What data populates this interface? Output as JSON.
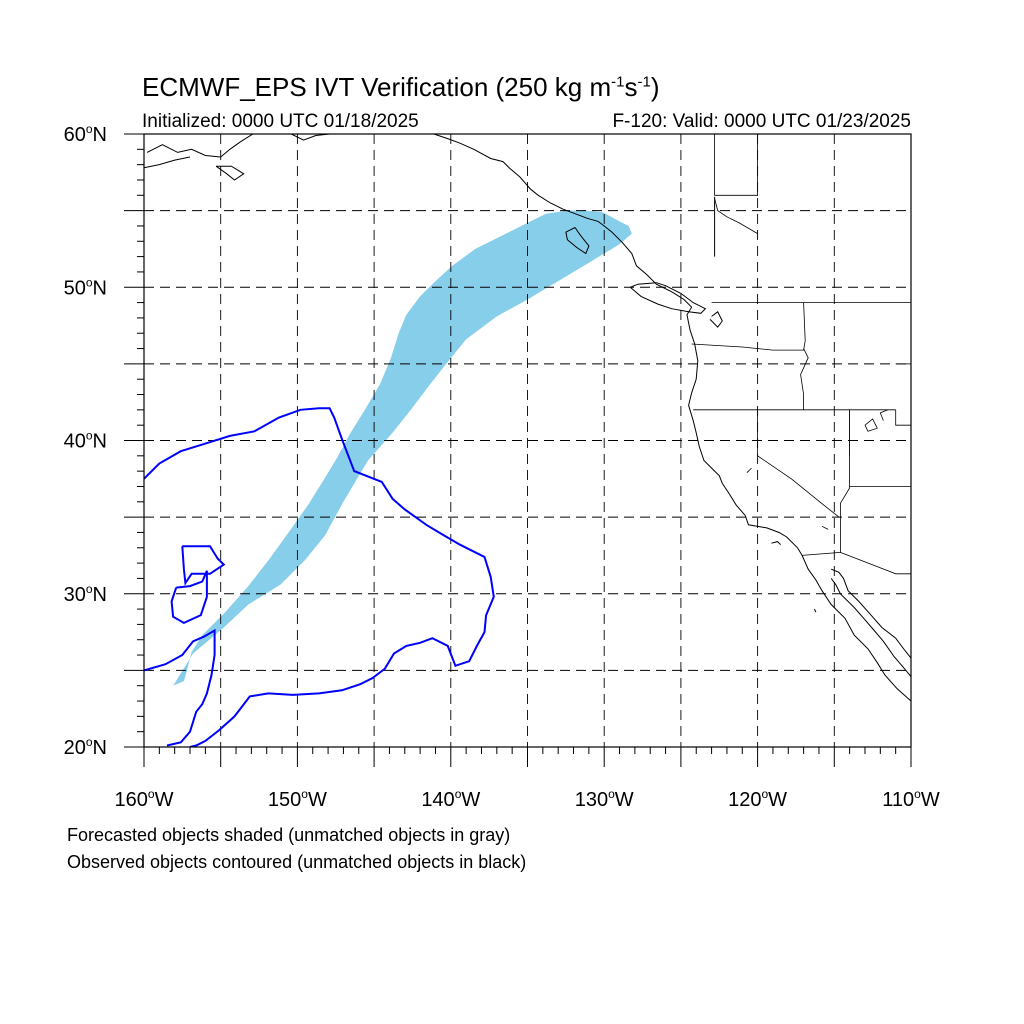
{
  "title": {
    "main": "ECMWF_EPS IVT Verification (250 kg m",
    "exp1": "-1",
    "mid": "s",
    "exp2": "-1",
    "close": ")"
  },
  "subtitle_left": "Initialized: 0000 UTC 01/18/2025",
  "subtitle_right": "F-120: Valid: 0000 UTC 01/23/2025",
  "notes": [
    "Forecasted objects shaded (unmatched objects in gray)",
    "Observed objects contoured (unmatched objects in black)"
  ],
  "map": {
    "lon_range": [
      -160,
      -110
    ],
    "lat_range": [
      20,
      60
    ],
    "lon_labels": [
      {
        "lon": -160,
        "num": "160",
        "hemi": "W"
      },
      {
        "lon": -150,
        "num": "150",
        "hemi": "W"
      },
      {
        "lon": -140,
        "num": "140",
        "hemi": "W"
      },
      {
        "lon": -130,
        "num": "130",
        "hemi": "W"
      },
      {
        "lon": -120,
        "num": "120",
        "hemi": "W"
      },
      {
        "lon": -110,
        "num": "110",
        "hemi": "W"
      }
    ],
    "lat_labels": [
      {
        "lat": 60,
        "num": "60",
        "hemi": "N"
      },
      {
        "lat": 50,
        "num": "50",
        "hemi": "N"
      },
      {
        "lat": 40,
        "num": "40",
        "hemi": "N"
      },
      {
        "lat": 30,
        "num": "30",
        "hemi": "N"
      },
      {
        "lat": 20,
        "num": "20",
        "hemi": "N"
      }
    ],
    "grid_lons": [
      -155,
      -150,
      -145,
      -140,
      -135,
      -130,
      -125,
      -120,
      -115
    ],
    "grid_lats": [
      55,
      50,
      45,
      40,
      35,
      30,
      25
    ],
    "colors": {
      "forecast_fill": "#87CEEB",
      "observed_contour": "#0000FF",
      "coastline": "#000000",
      "grid": "#000000"
    },
    "forecast_object": [
      [
        -158.1,
        24.0
      ],
      [
        -156.8,
        26.1
      ],
      [
        -154.8,
        27.8
      ],
      [
        -153.2,
        29.3
      ],
      [
        -151.1,
        30.6
      ],
      [
        -149.5,
        32.2
      ],
      [
        -148.2,
        33.8
      ],
      [
        -147.0,
        36.0
      ],
      [
        -145.4,
        38.7
      ],
      [
        -143.8,
        40.5
      ],
      [
        -142.6,
        42.0
      ],
      [
        -141.4,
        43.6
      ],
      [
        -140.3,
        45.0
      ],
      [
        -139.0,
        46.6
      ],
      [
        -137.0,
        48.1
      ],
      [
        -135.0,
        49.2
      ],
      [
        -133.0,
        50.4
      ],
      [
        -131.0,
        51.6
      ],
      [
        -129.0,
        52.8
      ],
      [
        -128.2,
        53.5
      ],
      [
        -128.4,
        54.0
      ],
      [
        -129.2,
        54.4
      ],
      [
        -130.1,
        54.9
      ],
      [
        -131.2,
        55.0
      ],
      [
        -132.4,
        55.0
      ],
      [
        -133.8,
        54.8
      ],
      [
        -135.0,
        54.2
      ],
      [
        -136.6,
        53.4
      ],
      [
        -138.4,
        52.5
      ],
      [
        -139.9,
        51.4
      ],
      [
        -141.0,
        50.4
      ],
      [
        -142.0,
        49.4
      ],
      [
        -142.9,
        48.2
      ],
      [
        -143.4,
        47.0
      ],
      [
        -143.9,
        45.4
      ],
      [
        -144.6,
        43.7
      ],
      [
        -145.6,
        42.0
      ],
      [
        -146.6,
        40.4
      ],
      [
        -147.4,
        38.9
      ],
      [
        -148.3,
        37.4
      ],
      [
        -149.3,
        35.8
      ],
      [
        -150.5,
        34.1
      ],
      [
        -151.8,
        32.3
      ],
      [
        -153.2,
        30.5
      ],
      [
        -154.7,
        28.8
      ],
      [
        -156.2,
        27.3
      ],
      [
        -156.9,
        26.2
      ],
      [
        -157.2,
        25.0
      ],
      [
        -157.4,
        24.3
      ]
    ],
    "observed_contours": [
      [
        [
          -160.0,
          37.5
        ],
        [
          -159.0,
          38.5
        ],
        [
          -157.6,
          39.3
        ],
        [
          -156.0,
          39.8
        ],
        [
          -154.4,
          40.3
        ],
        [
          -152.8,
          40.6
        ],
        [
          -151.2,
          41.5
        ],
        [
          -149.8,
          42.0
        ],
        [
          -148.6,
          42.1
        ],
        [
          -147.9,
          42.1
        ],
        [
          -147.6,
          41.5
        ],
        [
          -147.1,
          40.1
        ],
        [
          -146.3,
          38.0
        ],
        [
          -144.5,
          37.3
        ],
        [
          -143.8,
          36.2
        ],
        [
          -143.0,
          35.5
        ],
        [
          -141.6,
          34.5
        ],
        [
          -140.6,
          33.9
        ],
        [
          -139.4,
          33.2
        ],
        [
          -137.8,
          32.4
        ],
        [
          -137.4,
          31.1
        ],
        [
          -137.2,
          29.8
        ],
        [
          -137.7,
          28.6
        ],
        [
          -137.8,
          27.5
        ],
        [
          -138.3,
          26.6
        ],
        [
          -138.8,
          25.6
        ],
        [
          -139.7,
          25.3
        ],
        [
          -140.2,
          26.6
        ],
        [
          -141.2,
          27.1
        ],
        [
          -142.0,
          26.8
        ],
        [
          -142.9,
          26.6
        ],
        [
          -143.7,
          26.1
        ],
        [
          -144.3,
          25.1
        ],
        [
          -145.1,
          24.5
        ],
        [
          -145.9,
          24.1
        ],
        [
          -147.1,
          23.7
        ],
        [
          -148.6,
          23.5
        ],
        [
          -150.3,
          23.4
        ],
        [
          -151.9,
          23.5
        ],
        [
          -153.1,
          23.3
        ],
        [
          -154.1,
          22.0
        ],
        [
          -155.1,
          21.1
        ],
        [
          -156.0,
          20.4
        ],
        [
          -156.6,
          20.1
        ],
        [
          -157.0,
          20.0
        ]
      ],
      [
        [
          -160.0,
          25.0
        ],
        [
          -158.6,
          25.4
        ],
        [
          -157.5,
          26.0
        ],
        [
          -156.8,
          26.9
        ],
        [
          -156.1,
          27.2
        ],
        [
          -155.4,
          27.6
        ],
        [
          -155.4,
          26.0
        ],
        [
          -155.6,
          24.7
        ],
        [
          -155.9,
          23.5
        ],
        [
          -156.2,
          22.8
        ],
        [
          -156.6,
          22.3
        ],
        [
          -157.0,
          21.0
        ],
        [
          -157.6,
          20.3
        ],
        [
          -158.5,
          20.1
        ]
      ],
      [
        [
          -157.9,
          30.4
        ],
        [
          -157.0,
          30.5
        ],
        [
          -156.2,
          30.8
        ],
        [
          -155.9,
          31.5
        ],
        [
          -155.9,
          29.8
        ],
        [
          -156.3,
          28.6
        ],
        [
          -157.4,
          28.1
        ],
        [
          -158.1,
          28.5
        ],
        [
          -158.2,
          29.5
        ],
        [
          -157.9,
          30.4
        ]
      ],
      [
        [
          -157.5,
          33.1
        ],
        [
          -155.7,
          33.1
        ],
        [
          -155.2,
          32.3
        ],
        [
          -154.8,
          31.9
        ],
        [
          -155.7,
          31.3
        ],
        [
          -156.9,
          31.3
        ],
        [
          -157.3,
          30.7
        ],
        [
          -157.4,
          31.6
        ],
        [
          -157.5,
          33.1
        ]
      ]
    ],
    "coastlines": [
      [
        [
          -110.0,
          60.0
        ],
        [
          -110.0,
          59.5
        ]
      ],
      [
        [
          -159.8,
          58.8
        ],
        [
          -158.8,
          59.3
        ],
        [
          -157.8,
          58.8
        ],
        [
          -156.9,
          59.0
        ],
        [
          -156.0,
          58.6
        ],
        [
          -155.0,
          58.5
        ],
        [
          -154.4,
          59.0
        ],
        [
          -153.7,
          59.5
        ],
        [
          -152.9,
          60.0
        ]
      ],
      [
        [
          -160.0,
          57.8
        ],
        [
          -159.0,
          58.0
        ],
        [
          -158.0,
          58.3
        ],
        [
          -157.0,
          58.5
        ]
      ],
      [
        [
          -155.3,
          57.9
        ],
        [
          -154.6,
          57.4
        ],
        [
          -154.1,
          57.0
        ],
        [
          -153.5,
          57.4
        ],
        [
          -154.3,
          57.9
        ],
        [
          -155.3,
          57.9
        ]
      ],
      [
        [
          -150.4,
          60.0
        ],
        [
          -149.6,
          59.6
        ],
        [
          -148.8,
          59.9
        ],
        [
          -147.9,
          60.0
        ]
      ],
      [
        [
          -141.1,
          60.0
        ],
        [
          -140.2,
          59.7
        ],
        [
          -139.4,
          59.4
        ],
        [
          -138.5,
          59.0
        ],
        [
          -137.4,
          58.4
        ],
        [
          -136.6,
          58.2
        ],
        [
          -136.2,
          57.8
        ],
        [
          -135.5,
          57.2
        ],
        [
          -134.8,
          56.4
        ],
        [
          -134.3,
          56.0
        ],
        [
          -133.5,
          55.5
        ],
        [
          -132.7,
          55.1
        ],
        [
          -131.9,
          54.8
        ],
        [
          -131.1,
          54.5
        ],
        [
          -130.4,
          54.3
        ],
        [
          -130.0,
          54.0
        ],
        [
          -129.5,
          53.6
        ],
        [
          -128.8,
          52.9
        ],
        [
          -128.2,
          52.2
        ],
        [
          -127.9,
          51.4
        ],
        [
          -127.2,
          50.8
        ],
        [
          -126.6,
          50.2
        ],
        [
          -125.6,
          49.7
        ],
        [
          -124.8,
          49.2
        ],
        [
          -124.3,
          48.7
        ],
        [
          -124.6,
          48.2
        ],
        [
          -124.4,
          47.2
        ],
        [
          -124.1,
          46.3
        ],
        [
          -123.9,
          45.2
        ],
        [
          -124.0,
          44.0
        ],
        [
          -124.3,
          43.1
        ],
        [
          -124.5,
          42.3
        ],
        [
          -124.2,
          41.3
        ],
        [
          -124.0,
          40.5
        ],
        [
          -123.8,
          39.6
        ],
        [
          -123.5,
          38.7
        ],
        [
          -122.9,
          38.1
        ],
        [
          -122.5,
          37.7
        ],
        [
          -122.3,
          37.2
        ],
        [
          -121.9,
          36.6
        ],
        [
          -121.4,
          35.8
        ],
        [
          -120.8,
          35.1
        ],
        [
          -120.6,
          34.5
        ],
        [
          -119.4,
          34.3
        ],
        [
          -118.6,
          34.0
        ],
        [
          -118.1,
          33.7
        ],
        [
          -117.4,
          33.0
        ],
        [
          -117.1,
          32.5
        ],
        [
          -116.7,
          31.6
        ],
        [
          -116.2,
          30.9
        ],
        [
          -115.8,
          30.2
        ],
        [
          -115.2,
          29.3
        ],
        [
          -114.3,
          28.4
        ],
        [
          -113.7,
          27.3
        ],
        [
          -112.8,
          26.4
        ],
        [
          -112.2,
          25.5
        ],
        [
          -111.7,
          24.7
        ],
        [
          -110.9,
          23.8
        ],
        [
          -110.0,
          23.0
        ]
      ],
      [
        [
          -115.2,
          31.0
        ],
        [
          -114.9,
          30.6
        ],
        [
          -114.6,
          30.0
        ],
        [
          -113.7,
          29.1
        ],
        [
          -113.0,
          28.3
        ],
        [
          -112.4,
          27.6
        ],
        [
          -111.8,
          26.9
        ],
        [
          -111.1,
          25.9
        ],
        [
          -110.5,
          25.2
        ],
        [
          -110.0,
          24.6
        ]
      ],
      [
        [
          -115.2,
          31.6
        ],
        [
          -114.7,
          31.4
        ],
        [
          -114.4,
          31.0
        ],
        [
          -114.1,
          30.2
        ],
        [
          -113.4,
          29.5
        ],
        [
          -112.6,
          28.6
        ],
        [
          -111.9,
          27.8
        ],
        [
          -111.0,
          27.1
        ],
        [
          -110.4,
          26.3
        ],
        [
          -110.0,
          25.8
        ]
      ],
      [
        [
          -126.6,
          50.3
        ],
        [
          -127.8,
          50.2
        ],
        [
          -128.3,
          50.0
        ],
        [
          -127.6,
          49.4
        ],
        [
          -126.5,
          48.9
        ],
        [
          -125.6,
          48.6
        ],
        [
          -124.5,
          48.4
        ],
        [
          -123.7,
          48.3
        ],
        [
          -123.4,
          48.6
        ],
        [
          -124.2,
          49.0
        ],
        [
          -125.0,
          49.6
        ],
        [
          -126.0,
          50.1
        ],
        [
          -126.6,
          50.3
        ]
      ],
      [
        [
          -131.9,
          53.9
        ],
        [
          -132.5,
          53.6
        ],
        [
          -132.4,
          53.1
        ],
        [
          -131.8,
          52.6
        ],
        [
          -131.2,
          52.2
        ],
        [
          -131.0,
          52.7
        ],
        [
          -131.4,
          53.2
        ],
        [
          -131.7,
          53.6
        ],
        [
          -131.9,
          53.9
        ]
      ],
      [
        [
          -123.1,
          47.9
        ],
        [
          -122.6,
          47.4
        ],
        [
          -122.3,
          47.8
        ],
        [
          -122.6,
          48.4
        ],
        [
          -123.0,
          48.1
        ]
      ],
      [
        [
          -119.1,
          33.3
        ],
        [
          -118.7,
          33.4
        ],
        [
          -118.5,
          33.2
        ]
      ],
      [
        [
          -116.3,
          29.0
        ],
        [
          -116.2,
          28.8
        ]
      ],
      [
        [
          -122.8,
          55.9
        ],
        [
          -122.8,
          52.0
        ]
      ]
    ],
    "borders": [
      [
        [
          -122.8,
          60.0
        ],
        [
          -122.8,
          56.0
        ],
        [
          -120.0,
          56.0
        ],
        [
          -120.0,
          60.0
        ]
      ],
      [
        [
          -123.0,
          49.0
        ],
        [
          -110.0,
          49.0
        ]
      ],
      [
        [
          -124.3,
          46.3
        ],
        [
          -121.0,
          46.1
        ],
        [
          -119.0,
          45.9
        ],
        [
          -117.0,
          45.9
        ],
        [
          -116.9,
          46.5
        ],
        [
          -117.0,
          49.0
        ]
      ],
      [
        [
          -124.2,
          42.0
        ],
        [
          -111.0,
          42.0
        ]
      ],
      [
        [
          -117.0,
          46.0
        ],
        [
          -116.7,
          45.4
        ],
        [
          -117.2,
          44.3
        ],
        [
          -117.0,
          43.0
        ],
        [
          -117.0,
          42.0
        ]
      ],
      [
        [
          -114.0,
          42.0
        ],
        [
          -114.0,
          36.9
        ],
        [
          -114.6,
          35.9
        ],
        [
          -114.6,
          35.0
        ]
      ],
      [
        [
          -120.0,
          42.0
        ],
        [
          -120.0,
          39.0
        ],
        [
          -117.8,
          37.5
        ],
        [
          -115.7,
          35.8
        ],
        [
          -114.7,
          35.0
        ]
      ],
      [
        [
          -114.6,
          35.0
        ],
        [
          -114.6,
          32.7
        ],
        [
          -117.1,
          32.5
        ]
      ],
      [
        [
          -114.6,
          32.7
        ],
        [
          -111.0,
          31.3
        ],
        [
          -110.0,
          31.3
        ]
      ],
      [
        [
          -111.0,
          42.0
        ],
        [
          -111.0,
          41.0
        ],
        [
          -110.0,
          41.0
        ]
      ],
      [
        [
          -114.0,
          37.0
        ],
        [
          -110.0,
          37.0
        ]
      ],
      [
        [
          -111.0,
          45.0
        ],
        [
          -110.0,
          45.0
        ]
      ],
      [
        [
          -114.0,
          42.0
        ],
        [
          -114.0,
          39.0
        ]
      ],
      [
        [
          -113.0,
          41.0
        ],
        [
          -112.5,
          41.4
        ],
        [
          -112.2,
          40.8
        ],
        [
          -112.8,
          40.6
        ],
        [
          -113.0,
          41.0
        ]
      ],
      [
        [
          -111.5,
          42.0
        ],
        [
          -112.0,
          41.8
        ],
        [
          -111.8,
          41.3
        ]
      ],
      [
        [
          -120.7,
          37.9
        ],
        [
          -120.4,
          38.2
        ]
      ],
      [
        [
          -115.8,
          34.4
        ],
        [
          -115.4,
          34.2
        ]
      ],
      [
        [
          -122.8,
          55.8
        ],
        [
          -122.6,
          55.0
        ],
        [
          -122.0,
          54.6
        ],
        [
          -121.2,
          54.2
        ],
        [
          -120.0,
          53.5
        ]
      ]
    ]
  }
}
